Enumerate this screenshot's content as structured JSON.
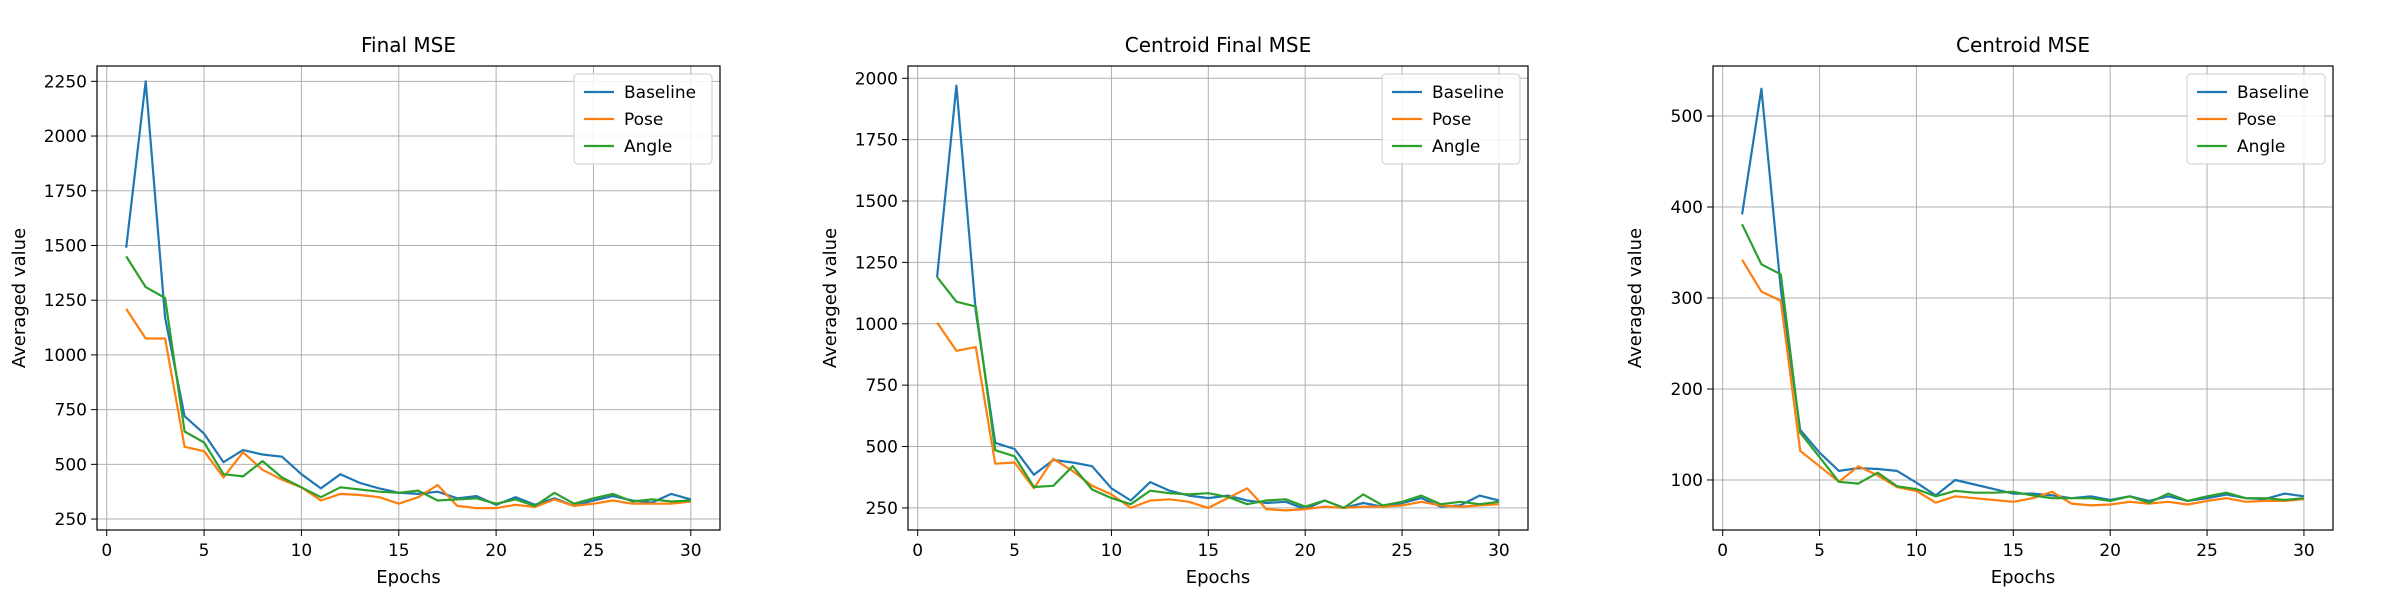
{
  "colors": {
    "Baseline": "#1f77b4",
    "Pose": "#ff7f0e",
    "Angle": "#2ca02c"
  },
  "chart_data": [
    {
      "type": "line",
      "title": "Final MSE",
      "xlabel": "Epochs",
      "ylabel": "Averaged value",
      "xlim": [
        -0.5,
        31.5
      ],
      "ylim": [
        200,
        2320
      ],
      "xticks": [
        0,
        5,
        10,
        15,
        20,
        25,
        30
      ],
      "yticks": [
        250,
        500,
        750,
        1000,
        1250,
        1500,
        1750,
        2000,
        2250
      ],
      "grid": true,
      "legend_position": "top-right",
      "x": [
        1,
        2,
        3,
        4,
        5,
        6,
        7,
        8,
        9,
        10,
        11,
        12,
        13,
        14,
        15,
        16,
        17,
        18,
        19,
        20,
        21,
        22,
        23,
        24,
        25,
        26,
        27,
        28,
        29,
        30
      ],
      "series": [
        {
          "name": "Baseline",
          "values": [
            1490,
            2250,
            1170,
            720,
            640,
            510,
            565,
            545,
            535,
            455,
            390,
            455,
            415,
            390,
            370,
            365,
            375,
            345,
            355,
            315,
            350,
            315,
            345,
            310,
            335,
            355,
            335,
            325,
            365,
            340
          ]
        },
        {
          "name": "Pose",
          "values": [
            1210,
            1075,
            1075,
            580,
            560,
            440,
            555,
            475,
            430,
            395,
            335,
            365,
            360,
            350,
            320,
            350,
            405,
            310,
            300,
            300,
            315,
            305,
            340,
            310,
            320,
            335,
            320,
            320,
            320,
            330
          ]
        },
        {
          "name": "Angle",
          "values": [
            1450,
            1310,
            1260,
            650,
            600,
            455,
            445,
            515,
            440,
            395,
            350,
            395,
            385,
            375,
            370,
            380,
            335,
            340,
            345,
            320,
            340,
            310,
            370,
            320,
            345,
            365,
            330,
            340,
            330,
            335
          ]
        }
      ]
    },
    {
      "type": "line",
      "title": "Centroid Final MSE",
      "xlabel": "Epochs",
      "ylabel": "Averaged value",
      "xlim": [
        -0.5,
        31.5
      ],
      "ylim": [
        160,
        2050
      ],
      "xticks": [
        0,
        5,
        10,
        15,
        20,
        25,
        30
      ],
      "yticks": [
        250,
        500,
        750,
        1000,
        1250,
        1500,
        1750,
        2000
      ],
      "grid": true,
      "legend_position": "top-right",
      "x": [
        1,
        2,
        3,
        4,
        5,
        6,
        7,
        8,
        9,
        10,
        11,
        12,
        13,
        14,
        15,
        16,
        17,
        18,
        19,
        20,
        21,
        22,
        23,
        24,
        25,
        26,
        27,
        28,
        29,
        30
      ],
      "series": [
        {
          "name": "Baseline",
          "values": [
            1190,
            1970,
            1050,
            515,
            490,
            385,
            445,
            435,
            420,
            330,
            280,
            355,
            320,
            300,
            290,
            300,
            280,
            270,
            275,
            245,
            280,
            250,
            270,
            255,
            270,
            290,
            255,
            260,
            300,
            280
          ]
        },
        {
          "name": "Pose",
          "values": [
            1005,
            890,
            905,
            430,
            435,
            330,
            450,
            400,
            340,
            305,
            250,
            280,
            285,
            275,
            250,
            290,
            330,
            245,
            240,
            245,
            255,
            250,
            255,
            255,
            260,
            275,
            260,
            255,
            260,
            265
          ]
        },
        {
          "name": "Angle",
          "values": [
            1190,
            1090,
            1070,
            485,
            460,
            335,
            340,
            420,
            325,
            290,
            265,
            320,
            310,
            305,
            310,
            295,
            265,
            280,
            285,
            255,
            280,
            250,
            305,
            260,
            275,
            300,
            265,
            275,
            265,
            275
          ]
        }
      ]
    },
    {
      "type": "line",
      "title": "Centroid MSE",
      "xlabel": "Epochs",
      "ylabel": "Averaged value",
      "xlim": [
        -0.5,
        31.5
      ],
      "ylim": [
        45,
        555
      ],
      "xticks": [
        0,
        5,
        10,
        15,
        20,
        25,
        30
      ],
      "yticks": [
        100,
        200,
        300,
        400,
        500
      ],
      "grid": true,
      "legend_position": "top-right",
      "x": [
        1,
        2,
        3,
        4,
        5,
        6,
        7,
        8,
        9,
        10,
        11,
        12,
        13,
        14,
        15,
        16,
        17,
        18,
        19,
        20,
        21,
        22,
        23,
        24,
        25,
        26,
        27,
        28,
        29,
        30
      ],
      "series": [
        {
          "name": "Baseline",
          "values": [
            392,
            530,
            310,
            155,
            130,
            110,
            113,
            112,
            110,
            97,
            83,
            100,
            95,
            90,
            85,
            85,
            83,
            80,
            82,
            78,
            82,
            77,
            82,
            77,
            80,
            84,
            80,
            79,
            85,
            82
          ]
        },
        {
          "name": "Pose",
          "values": [
            342,
            307,
            297,
            132,
            115,
            98,
            115,
            105,
            92,
            88,
            75,
            82,
            80,
            78,
            76,
            80,
            87,
            74,
            72,
            73,
            76,
            74,
            76,
            73,
            77,
            80,
            76,
            77,
            77,
            79
          ]
        },
        {
          "name": "Angle",
          "values": [
            381,
            337,
            326,
            152,
            125,
            98,
            96,
            108,
            93,
            90,
            82,
            88,
            86,
            86,
            87,
            83,
            80,
            80,
            80,
            77,
            82,
            75,
            85,
            77,
            82,
            86,
            80,
            80,
            78,
            80
          ]
        }
      ]
    }
  ]
}
